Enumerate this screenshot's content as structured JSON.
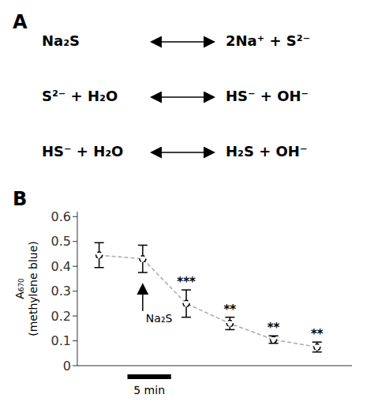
{
  "chart_data": {
    "type": "line",
    "panel_labels": [
      "A",
      "B"
    ],
    "equations": [
      {
        "left": "Na₂S",
        "right": "2Na⁺ + S²⁻"
      },
      {
        "left": "S²⁻ + H₂O",
        "right": "HS⁻ + OH⁻"
      },
      {
        "left": "HS⁻ + H₂O",
        "right": "H₂S + OH⁻"
      }
    ],
    "x": [
      0,
      1,
      2,
      3,
      4,
      5
    ],
    "values": [
      0.445,
      0.43,
      0.25,
      0.17,
      0.105,
      0.075
    ],
    "errors": [
      0.05,
      0.055,
      0.055,
      0.025,
      0.015,
      0.02
    ],
    "significance": [
      null,
      null,
      "***",
      "**",
      "**",
      "**"
    ],
    "y_label": [
      "A₆₇₀",
      "(methylene blue)"
    ],
    "color": "#aaaaaa",
    "line_style": "dashed",
    "marker": "circle",
    "xlim": [
      -0.5,
      5.8
    ],
    "ylim": [
      0,
      0.62
    ],
    "yticks": [
      0,
      0.1,
      0.2,
      0.3,
      0.4,
      0.5,
      0.6
    ],
    "tick_labels": "y",
    "grid": false,
    "annotations": [
      {
        "text": "Na₂S",
        "x": 1,
        "y": 0.22,
        "y_end": 0.33
      },
      {
        "text": "5 min",
        "x": 0.65,
        "x_end": 1.65
      }
    ]
  }
}
